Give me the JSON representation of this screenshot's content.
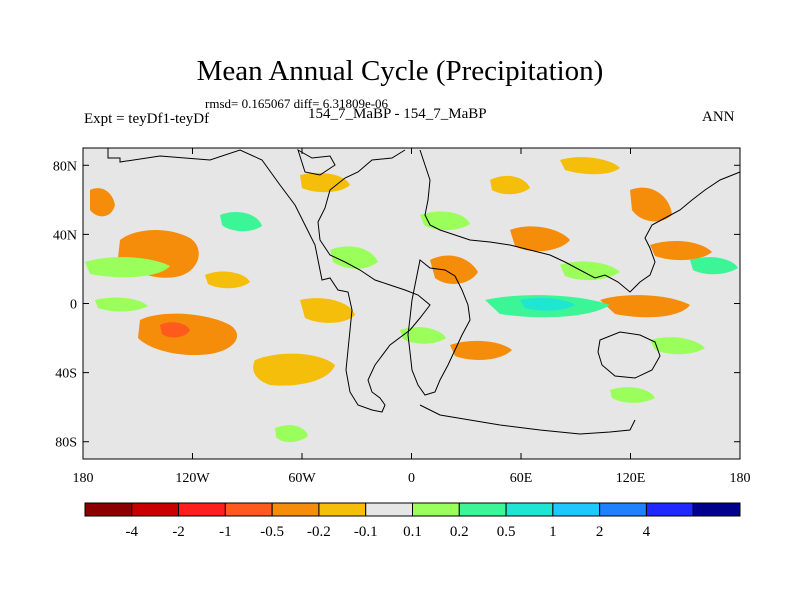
{
  "title": "Mean Annual Cycle (Precipitation)",
  "stats": "rmsd= 0.165067 diff= 6.31809e-06",
  "expt": "Expt = teyDf1-teyDf",
  "subtitle": "154_7_MaBP - 154_7_MaBP",
  "season": "ANN",
  "map": {
    "lat_ticks": [
      "80N",
      "40N",
      "0",
      "40S",
      "80S"
    ],
    "lat_values": [
      80,
      40,
      0,
      -40,
      -80
    ],
    "lon_ticks": [
      "180",
      "120W",
      "60W",
      "0",
      "60E",
      "120E",
      "180"
    ],
    "lon_values": [
      -180,
      -120,
      -60,
      0,
      60,
      120,
      180
    ],
    "lat_range": [
      -90,
      90
    ],
    "lon_range": [
      -180,
      180
    ],
    "background_color": "#e6e6e6"
  },
  "colorbar": {
    "colors": [
      "#8b0000",
      "#c80000",
      "#ff1e1e",
      "#ff5a1e",
      "#f58c0a",
      "#f5be0a",
      "#e6e6e6",
      "#9aff5a",
      "#3cf596",
      "#1ee6d2",
      "#1ec8ff",
      "#1e82ff",
      "#1e28ff",
      "#00008c"
    ],
    "labels": [
      "-4",
      "-2",
      "-1",
      "-0.5",
      "-0.2",
      "-0.1",
      "0.1",
      "0.2",
      "0.5",
      "1",
      "2",
      "4"
    ]
  }
}
